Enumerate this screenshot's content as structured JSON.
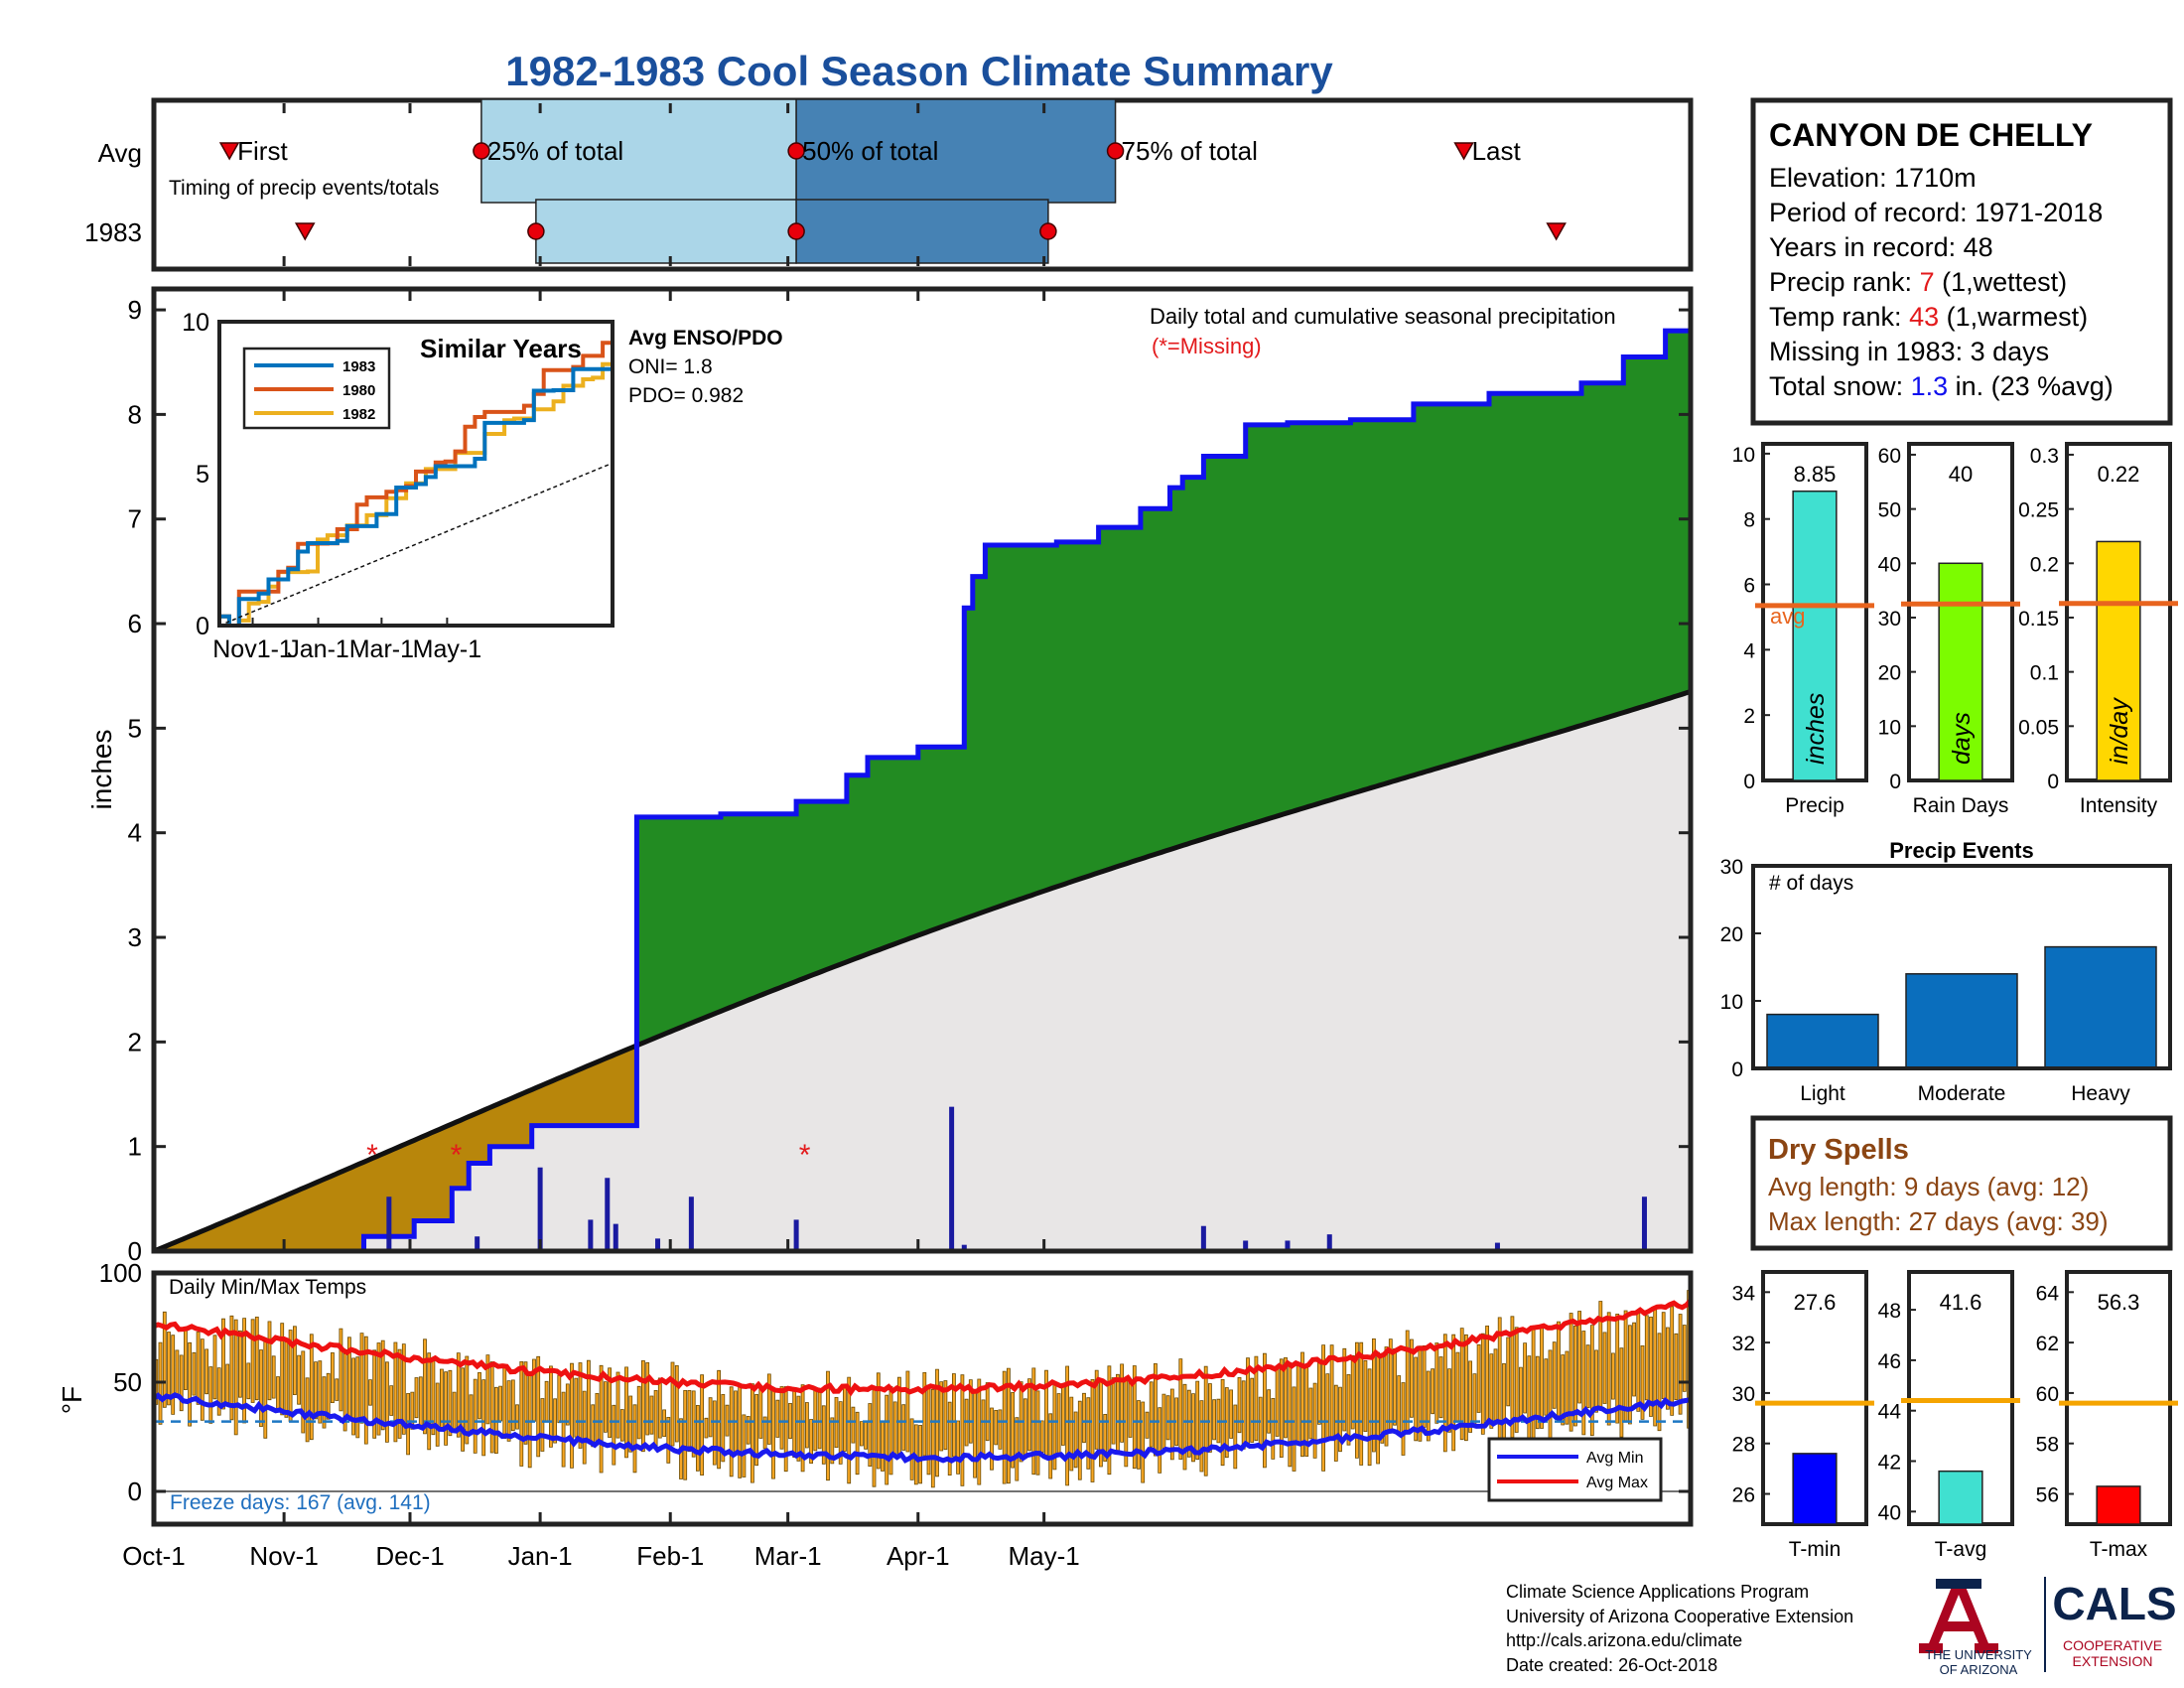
{
  "title": "1982-1983 Cool Season Climate Summary",
  "colors": {
    "title": "#1a4f9c",
    "green_fill": "#228b22",
    "gold_fill": "#b8860b",
    "avg_fill": "#e8e6e6",
    "cum_line": "#1010ee",
    "light_box": "#abd6e8",
    "dark_box": "#4682b4",
    "precip_bar": "#40e0d0",
    "rain_bar": "#7cfc00",
    "intensity_bar": "#ffd700",
    "events_bar": "#0a6ebd",
    "orange_line": "#e8641e",
    "dry_brown": "#8b4513",
    "temp_bar": "#f6a623",
    "tmin_bar": "#0000ff",
    "tavg_bar": "#40e0d0",
    "tmax_bar": "#ff0000",
    "ua_red": "#ab0520",
    "ua_blue": "#0c234b"
  },
  "timing": {
    "rows": [
      "Avg",
      "1983"
    ],
    "labels": {
      "first": "First",
      "p25": "25% of total",
      "p50": "50% of total",
      "p75": "75% of total",
      "last": "Last"
    },
    "caption": "Timing of precip events/totals",
    "avg": {
      "first": 18,
      "p25": 78,
      "p50": 153,
      "p75": 229,
      "last": 312
    },
    "y1983": {
      "first": 36,
      "p25": 91,
      "p50": 153,
      "p75": 213,
      "last": 334
    }
  },
  "main": {
    "ylabel": "inches",
    "caption": "Daily total and cumulative seasonal precipitation",
    "missing_note": "(*=Missing)",
    "missing_days": [
      52,
      72,
      155
    ]
  },
  "inset": {
    "title": "Similar Years",
    "ticks_x": [
      "Nov1-1",
      "Jan-1",
      "Mar-1",
      "May-1"
    ],
    "ticks_y": [
      "0",
      "5",
      "10"
    ],
    "enso_title": "Avg ENSO/PDO",
    "oni": "ONI= 1.8",
    "pdo": "PDO= 0.982",
    "legend": [
      "1983",
      "1980",
      "1982"
    ]
  },
  "info": {
    "station": "CANYON DE CHELLY",
    "elevation": "Elevation: 1710m",
    "period": "Period of record: 1971-2018",
    "years": "Years in record: 48",
    "precip_rank_label": "Precip rank: ",
    "precip_rank": "7",
    "precip_rank_note": " (1,wettest)",
    "temp_rank_label": "Temp rank: ",
    "temp_rank": "43",
    "temp_rank_note": " (1,warmest)",
    "missing": "Missing in 1983: 3 days",
    "snow_label": "Total snow: ",
    "snow_value": "1.3",
    "snow_note": " in. (23 %avg)"
  },
  "small_bars": {
    "precip": {
      "value": 8.85,
      "value_text": "8.85",
      "avg": 5.35,
      "unit": "inches",
      "xlabel": "Precip",
      "avg_label": "avg",
      "ticks": [
        "0",
        "2",
        "4",
        "6",
        "8",
        "10"
      ]
    },
    "rain_days": {
      "value": 40,
      "value_text": "40",
      "avg": 32.5,
      "unit": "days",
      "xlabel": "Rain Days",
      "ticks": [
        "0",
        "10",
        "20",
        "30",
        "40",
        "50",
        "60"
      ]
    },
    "intensity": {
      "value": 0.22,
      "value_text": "0.22",
      "avg": 0.163,
      "unit": "in/day",
      "xlabel": "Intensity",
      "ticks": [
        "0",
        "0.05",
        "0.1",
        "0.15",
        "0.2",
        "0.25",
        "0.3"
      ]
    }
  },
  "events": {
    "title": "Precip Events",
    "ylabel": "# of days",
    "categories": [
      "Light",
      "Moderate",
      "Heavy"
    ],
    "values": [
      8,
      14,
      18
    ],
    "ticks": [
      "0",
      "10",
      "20",
      "30"
    ]
  },
  "dry": {
    "title": "Dry Spells",
    "avg": "Avg length: 9 days (avg: 12)",
    "max": "Max length: 27 days (avg: 39)"
  },
  "temps": {
    "label": "Daily Min/Max Temps",
    "ylabel": "°F",
    "ticks": [
      "0",
      "50",
      "100"
    ],
    "freeze": "Freeze days: 167 (avg. 141)",
    "legend": [
      "Avg Min",
      "Avg Max"
    ]
  },
  "temp_bars": {
    "tmin": {
      "value": 27.6,
      "value_text": "27.6",
      "avg": 29.6,
      "xlabel": "T-min",
      "ticks": [
        "26",
        "28",
        "30",
        "32",
        "34"
      ]
    },
    "tavg": {
      "value": 41.6,
      "value_text": "41.6",
      "avg": 44.4,
      "xlabel": "T-avg",
      "ticks": [
        "40",
        "42",
        "44",
        "46",
        "48"
      ]
    },
    "tmax": {
      "value": 56.3,
      "value_text": "56.3",
      "avg": 59.6,
      "xlabel": "T-max",
      "ticks": [
        "56",
        "58",
        "60",
        "62",
        "64"
      ]
    }
  },
  "xaxis": [
    "Oct-1",
    "Nov-1",
    "Dec-1",
    "Jan-1",
    "Feb-1",
    "Mar-1",
    "Apr-1",
    "May-1"
  ],
  "footer": [
    "Climate Science Applications Program",
    "University of Arizona Cooperative Extension",
    "http://cals.arizona.edu/climate",
    " Date created: 26-Oct-2018"
  ],
  "logos": {
    "univ1": "THE UNIVERSITY",
    "univ2": "OF ARIZONA",
    "cals": "CALS",
    "coop1": "COOPERATIVE",
    "coop2": "EXTENSION"
  },
  "chart_data": {
    "type": "area",
    "title": "1982-1983 Cool Season Climate Summary",
    "x_axis": "day of season (Oct-1 = 0)",
    "ylabel": "inches",
    "ylim": [
      0,
      9.2
    ],
    "cumulative_1983": [
      [
        0,
        0
      ],
      [
        35,
        0
      ],
      [
        50,
        0.14
      ],
      [
        62,
        0.14
      ],
      [
        62,
        0.29
      ],
      [
        71,
        0.4
      ],
      [
        71,
        0.6
      ],
      [
        75,
        0.74
      ],
      [
        75,
        0.84
      ],
      [
        80,
        1.0
      ],
      [
        90,
        1.2
      ],
      [
        115,
        4.15
      ],
      [
        135,
        4.18
      ],
      [
        153,
        4.18
      ],
      [
        153,
        4.3
      ],
      [
        165,
        4.55
      ],
      [
        170,
        4.72
      ],
      [
        182,
        4.82
      ],
      [
        193,
        6.15
      ],
      [
        195,
        6.45
      ],
      [
        198,
        6.75
      ],
      [
        215,
        6.78
      ],
      [
        225,
        6.92
      ],
      [
        235,
        7.1
      ],
      [
        242,
        7.3
      ],
      [
        245,
        7.4
      ],
      [
        250,
        7.6
      ],
      [
        260,
        7.9
      ],
      [
        270,
        7.92
      ],
      [
        285,
        7.95
      ],
      [
        300,
        8.1
      ],
      [
        318,
        8.2
      ],
      [
        340,
        8.3
      ],
      [
        350,
        8.55
      ],
      [
        360,
        8.8
      ],
      [
        366,
        8.88
      ]
    ],
    "cumulative_avg_end": 5.35,
    "daily_spikes": [
      [
        56,
        0.52
      ],
      [
        77,
        0.14
      ],
      [
        92,
        0.8
      ],
      [
        104,
        0.3
      ],
      [
        108,
        0.7
      ],
      [
        110,
        0.26
      ],
      [
        120,
        0.12
      ],
      [
        128,
        0.52
      ],
      [
        153,
        0.3
      ],
      [
        190,
        1.38
      ],
      [
        193,
        0.06
      ],
      [
        250,
        0.24
      ],
      [
        260,
        0.1
      ],
      [
        270,
        0.1
      ],
      [
        280,
        0.16
      ],
      [
        320,
        0.08
      ],
      [
        355,
        0.52
      ],
      [
        366,
        0.08
      ]
    ],
    "inset_similar_years": {
      "1983_end": 8.85,
      "1980_end": 9.5,
      "1982_end": 8.6
    },
    "temperature": {
      "ylim": [
        -5,
        100
      ],
      "avg_max_start": 77,
      "avg_max_end": 86,
      "avg_min_start": 44,
      "avg_min_end": 47,
      "freeze_line": 32
    }
  }
}
